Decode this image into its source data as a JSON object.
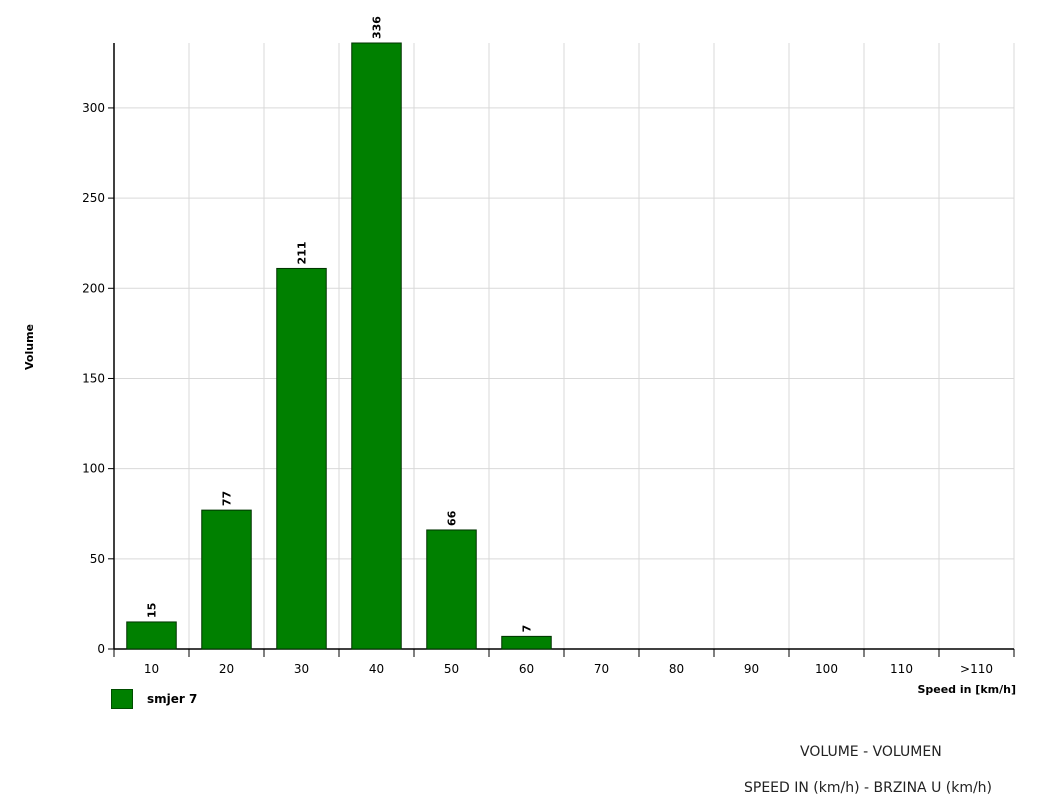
{
  "chart_data": {
    "type": "bar",
    "categories": [
      "10",
      "20",
      "30",
      "40",
      "50",
      "60",
      "70",
      "80",
      "90",
      "100",
      "110",
      ">110"
    ],
    "series": [
      {
        "name": "smjer 7",
        "values": [
          15,
          77,
          211,
          336,
          66,
          7,
          0,
          0,
          0,
          0,
          0,
          0
        ],
        "color": "#008000"
      }
    ],
    "data_labels": [
      "15",
      "77",
      "211",
      "336",
      "66",
      "7",
      "",
      "",
      "",
      "",
      "",
      ""
    ],
    "ylabel": "Volume",
    "xlabel": "Speed in [km/h]",
    "yticks": [
      0,
      50,
      100,
      150,
      200,
      250,
      300
    ],
    "ylim": [
      0,
      336
    ],
    "grid": true,
    "legend_position": "bottom-left"
  },
  "footer": {
    "line1": "VOLUME - VOLUMEN",
    "line2": "SPEED IN (km/h) - BRZINA U (km/h)"
  }
}
